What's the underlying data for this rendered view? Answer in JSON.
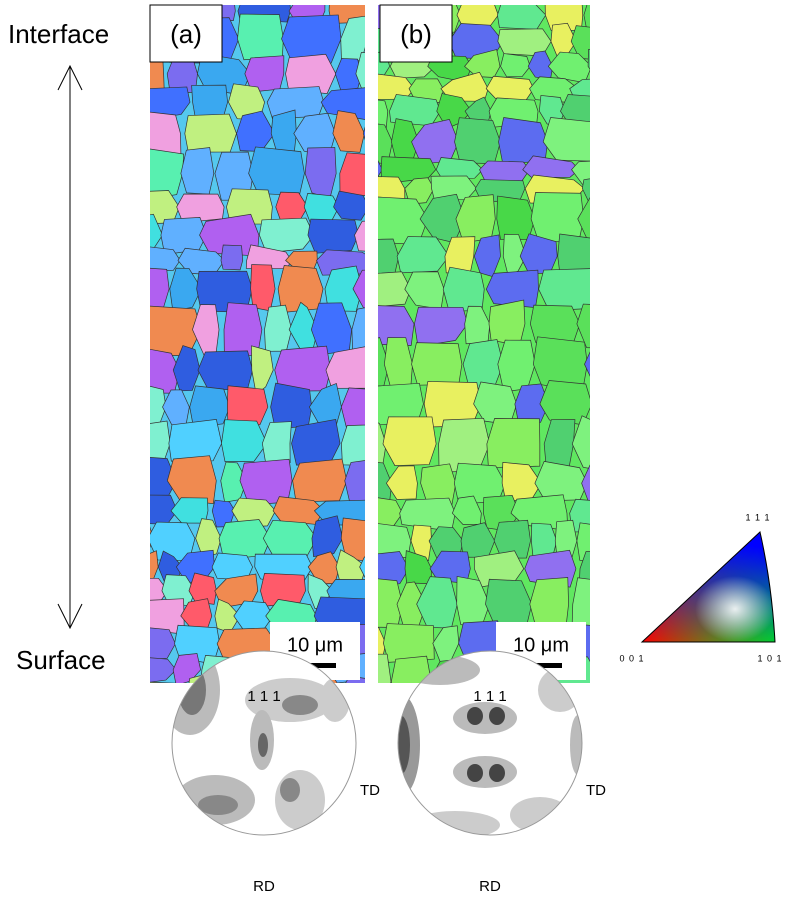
{
  "axis": {
    "top": "Interface",
    "bottom": "Surface"
  },
  "panels": [
    {
      "label": "(a)",
      "scale_bar": "10 μm",
      "pole_figure": {
        "top": "1 1 1",
        "right": "TD",
        "bottom": "RD"
      }
    },
    {
      "label": "(b)",
      "scale_bar": "10 μm",
      "pole_figure": {
        "top": "1 1 1",
        "right": "TD",
        "bottom": "RD"
      }
    }
  ],
  "legend_triangle": {
    "top": "1 1 1",
    "left": "0 0 1",
    "right": "1 0 1"
  }
}
